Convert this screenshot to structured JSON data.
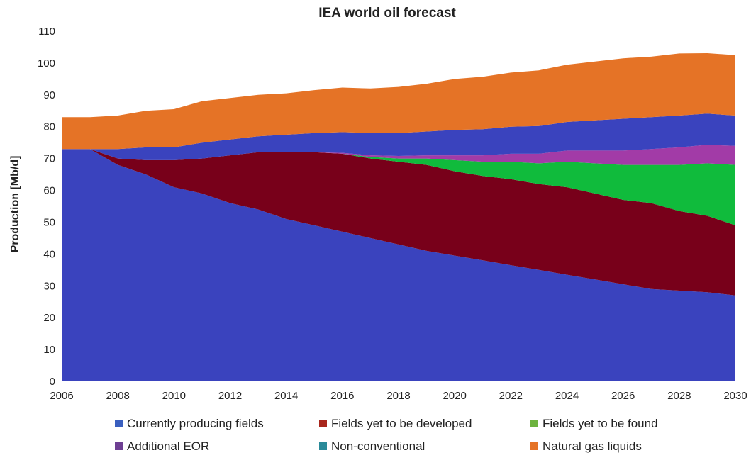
{
  "chart_data": {
    "type": "area",
    "title": "IEA world oil forecast",
    "xlabel": "",
    "ylabel": "Production [Mb/d]",
    "xlim": [
      2006,
      2030
    ],
    "ylim": [
      0,
      110
    ],
    "x_ticks": [
      "2006",
      "2008",
      "2010",
      "2012",
      "2014",
      "2016",
      "2018",
      "2020",
      "2022",
      "2024",
      "2026",
      "2028",
      "2030"
    ],
    "y_ticks": [
      "0",
      "10",
      "20",
      "30",
      "40",
      "50",
      "60",
      "70",
      "80",
      "90",
      "100",
      "110"
    ],
    "grid": false,
    "stacked": true,
    "legend_position": "bottom",
    "x": [
      2006,
      2007,
      2008,
      2009,
      2010,
      2011,
      2012,
      2013,
      2014,
      2015,
      2016,
      2017,
      2018,
      2019,
      2020,
      2021,
      2022,
      2023,
      2024,
      2025,
      2026,
      2027,
      2028,
      2029,
      2030
    ],
    "series": [
      {
        "name": "Currently producing fields",
        "color": "#3a43be",
        "values": [
          73,
          73,
          68,
          65,
          61,
          59,
          56,
          54,
          51,
          49,
          47,
          45,
          43,
          41,
          39.5,
          38,
          36.5,
          35,
          33.5,
          32,
          30.5,
          29,
          28.5,
          28,
          27
        ]
      },
      {
        "name": "Fields yet to be developed",
        "color": "#78001a",
        "values": [
          0,
          0,
          2,
          4.5,
          8.5,
          11,
          15,
          18,
          21,
          23,
          24.5,
          25,
          26,
          27,
          26.5,
          26.5,
          27,
          27,
          27.5,
          27,
          26.5,
          27,
          25,
          24,
          22
        ]
      },
      {
        "name": "Fields yet to be found",
        "color": "#10bb3c",
        "values": [
          0,
          0,
          0,
          0,
          0,
          0,
          0,
          0,
          0,
          0,
          0,
          0.5,
          1,
          2,
          3.5,
          4.5,
          5.5,
          6.5,
          8,
          9.5,
          11,
          12,
          14.5,
          16.5,
          19
        ]
      },
      {
        "name": "Additional EOR",
        "color": "#a23ba7",
        "values": [
          0,
          0,
          0,
          0,
          0,
          0,
          0,
          0,
          0,
          0,
          0.3,
          0.5,
          0.8,
          1,
          1.5,
          2,
          2.5,
          3,
          3.5,
          4,
          4.5,
          5,
          5.5,
          5.8,
          6
        ]
      },
      {
        "name": "Non-conventional",
        "color": "#1e8fa0",
        "values": [
          0,
          0,
          0,
          0,
          0,
          0,
          0,
          0,
          0,
          0,
          0,
          0,
          0,
          0,
          0,
          0,
          0,
          0,
          0,
          0,
          0,
          0,
          0,
          0,
          0
        ]
      },
      {
        "name": "",
        "color": "#3a43be",
        "values": [
          0,
          0,
          3,
          4,
          4,
          5,
          5,
          5,
          5.5,
          6,
          6.5,
          7,
          7.2,
          7.5,
          8,
          8.2,
          8.5,
          8.7,
          9,
          9.5,
          10,
          10,
          10,
          9.8,
          9.5
        ]
      },
      {
        "name": "Natural gas liquids",
        "color": "#e57326",
        "values": [
          10,
          10,
          10.5,
          11.5,
          12,
          13,
          13,
          13,
          13,
          13.5,
          14,
          14,
          14.5,
          15,
          16,
          16.5,
          17,
          17.5,
          18,
          18.5,
          19,
          19,
          19.5,
          19,
          19
        ]
      }
    ],
    "legend": [
      {
        "label": "Currently producing fields",
        "color": "#3a5fbf"
      },
      {
        "label": "Fields yet to be developed",
        "color": "#a8261c"
      },
      {
        "label": "Fields yet to be found",
        "color": "#6db33f"
      },
      {
        "label": "Additional EOR",
        "color": "#6e3f93"
      },
      {
        "label": "Non-conventional",
        "color": "#2a8a99"
      },
      {
        "label": "Natural gas liquids",
        "color": "#e57326"
      }
    ]
  }
}
